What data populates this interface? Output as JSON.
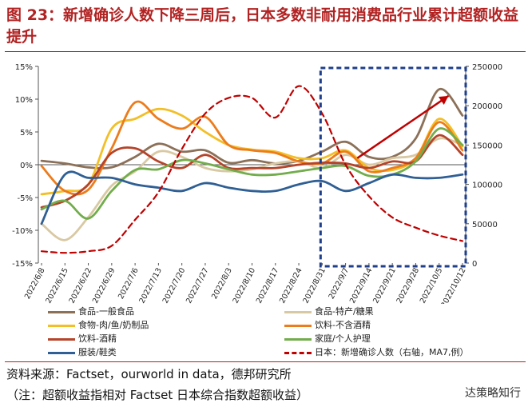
{
  "header": {
    "title": "图 23：新增确诊人数下降三周后，日本多数非耐用消费品行业累计超额收益提升"
  },
  "chart_data": {
    "type": "line",
    "title": "图 23：新增确诊人数下降三周后，日本多数非耐用消费品行业累计超额收益提升",
    "xlabel": "",
    "ylabel": "",
    "x": [
      "2022/6/8",
      "2022/6/15",
      "2022/6/22",
      "2022/6/29",
      "2022/7/6",
      "2022/7/13",
      "2022/7/20",
      "2022/7/27",
      "2022/8/3",
      "2022/8/10",
      "2022/8/17",
      "2022/8/24",
      "2022/8/31",
      "2022/9/7",
      "2022/9/14",
      "2022/9/21",
      "2022/9/28",
      "2022/10/5",
      "2022/10/12"
    ],
    "ylim": [
      -15,
      15
    ],
    "y_ticks": [
      "-15%",
      "-10%",
      "-5%",
      "0%",
      "5%",
      "10%",
      "15%"
    ],
    "y_ticks_values": [
      -15,
      -10,
      -5,
      0,
      5,
      10,
      15
    ],
    "y2lim": [
      0,
      250000
    ],
    "y2_ticks": [
      "0",
      "50000",
      "100000",
      "150000",
      "200000",
      "250000"
    ],
    "y2_ticks_values": [
      0,
      50000,
      100000,
      150000,
      200000,
      250000
    ],
    "highlight": {
      "from_index": 12,
      "to_index": 18,
      "label": "dashed box",
      "color": "#1f3f8a"
    },
    "arrow": {
      "from": [
        13.5,
        1
      ],
      "to": [
        17.4,
        10.5
      ],
      "color": "#c00000"
    },
    "series": [
      {
        "name": "食品-一般食品",
        "color": "#8c7058",
        "dash": false,
        "axis": "left",
        "values": [
          0.6,
          0.2,
          -0.4,
          -0.4,
          1.2,
          3.2,
          2.0,
          2.2,
          0.3,
          0.7,
          0.2,
          0.6,
          2.0,
          3.5,
          1.2,
          1.2,
          4.0,
          11.5,
          7.5
        ]
      },
      {
        "name": "食品-特产/糖果",
        "color": "#d9c9a3",
        "dash": false,
        "axis": "left",
        "values": [
          -9.0,
          -11.5,
          -8.0,
          -3.2,
          -1.0,
          2.0,
          1.2,
          -0.5,
          -1.0,
          -0.7,
          0.2,
          0.5,
          -0.5,
          1.5,
          0.0,
          1.0,
          1.5,
          4.0,
          3.0
        ]
      },
      {
        "name": "食物-肉/鱼/奶制品",
        "color": "#f2bf27",
        "dash": false,
        "axis": "left",
        "values": [
          -4.5,
          -4.0,
          -3.0,
          5.5,
          7.0,
          8.5,
          7.5,
          5.0,
          3.0,
          2.3,
          2.0,
          1.0,
          1.0,
          2.2,
          -0.5,
          -0.8,
          1.0,
          7.0,
          2.8
        ]
      },
      {
        "name": "饮料-不含酒精",
        "color": "#ec7c1c",
        "dash": false,
        "axis": "left",
        "values": [
          -0.2,
          -4.0,
          -3.8,
          2.5,
          9.5,
          7.0,
          5.5,
          7.3,
          3.0,
          2.2,
          1.8,
          0.5,
          0.2,
          2.0,
          -1.0,
          -0.5,
          1.0,
          6.5,
          2.2
        ]
      },
      {
        "name": "饮料-酒精",
        "color": "#b5442a",
        "dash": false,
        "axis": "left",
        "values": [
          -6.5,
          -5.5,
          -3.0,
          1.8,
          2.5,
          0.5,
          -0.5,
          1.5,
          -0.5,
          -0.5,
          -0.5,
          0.0,
          0.3,
          0.2,
          -0.5,
          0.5,
          0.5,
          4.5,
          1.5
        ]
      },
      {
        "name": "家庭/个人护理",
        "color": "#72ad4c",
        "dash": false,
        "axis": "left",
        "values": [
          -6.8,
          -5.5,
          -8.2,
          -4.0,
          -0.8,
          -0.7,
          0.7,
          0.2,
          -0.7,
          -1.5,
          -1.5,
          -1.0,
          -0.5,
          -0.2,
          -1.7,
          -1.5,
          0.5,
          5.5,
          3.0
        ]
      },
      {
        "name": "服装/鞋类",
        "color": "#2f5f94",
        "dash": false,
        "axis": "left",
        "values": [
          -9.0,
          -1.5,
          -2.0,
          -2.0,
          -3.0,
          -3.5,
          -4.0,
          -2.8,
          -3.5,
          -4.0,
          -4.0,
          -3.0,
          -2.5,
          -4.0,
          -2.8,
          -1.5,
          -2.0,
          -2.0,
          -1.5
        ]
      },
      {
        "name": "日本：新增确诊人数（右轴，MA7,例）",
        "color": "#c00000",
        "dash": true,
        "axis": "right",
        "values": [
          15000,
          13000,
          15000,
          22000,
          55000,
          90000,
          145000,
          190000,
          210000,
          210000,
          185000,
          225000,
          190000,
          125000,
          85000,
          58000,
          45000,
          35000,
          28000
        ]
      }
    ]
  },
  "legend": {
    "items": [
      "食品-一般食品",
      "食品-特产/糖果",
      "食物-肉/鱼/奶制品",
      "饮料-不含酒精",
      "饮料-酒精",
      "家庭/个人护理",
      "服装/鞋类",
      "日本：新增确诊人数（右轴，MA7,例）"
    ]
  },
  "source": {
    "line1": "资料来源：Factset，ourworld in data，德邦研究所",
    "line2": "（注：超额收益指相对 Factset 日本综合指数超额收益）"
  },
  "watermark": "达策略知行"
}
